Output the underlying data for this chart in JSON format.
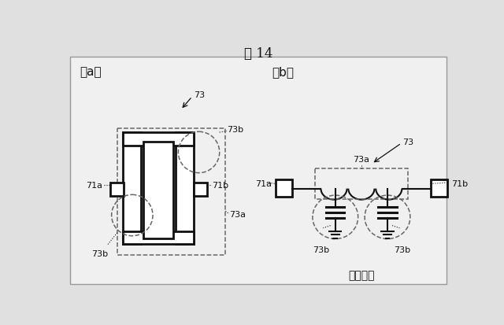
{
  "title": "図 14",
  "bg_color": "#e0e0e0",
  "panel_bg": "#f0f0f0",
  "label_a": "（a）",
  "label_b": "（b）",
  "ground_label": "接地電位"
}
